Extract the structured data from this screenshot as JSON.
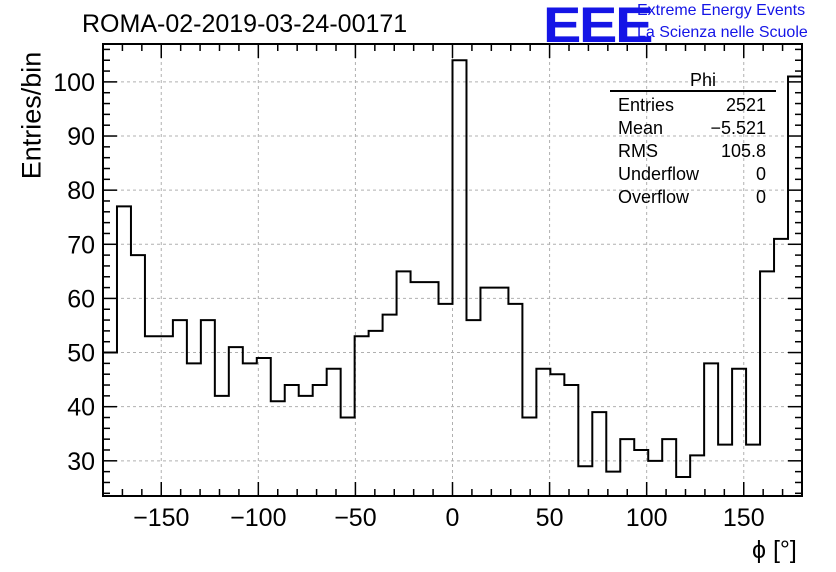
{
  "header": {
    "title": "ROMA-02-2019-03-24-00171",
    "logo_text": "EEE",
    "logo_line1": "Extreme Energy Events",
    "logo_line2": "La Scienza nelle Scuole"
  },
  "stats_box": {
    "name": "Phi",
    "rows": [
      {
        "label": "Entries",
        "value": "2521"
      },
      {
        "label": "Mean",
        "value": "−5.521"
      },
      {
        "label": "RMS",
        "value": "105.8"
      },
      {
        "label": "Underflow",
        "value": "0"
      },
      {
        "label": "Overflow",
        "value": "0"
      }
    ]
  },
  "colors": {
    "logo": "#1515e6",
    "line": "#000000",
    "grid": "#b0b0b0"
  },
  "chart_data": {
    "type": "histogram",
    "title": "ROMA-02-2019-03-24-00171",
    "xlabel": "ϕ [°]",
    "ylabel": "Entries/bin",
    "xlim": [
      -180,
      180
    ],
    "ylim": [
      23.5,
      107
    ],
    "bin_width": 7.2,
    "x_ticks": [
      -150,
      -100,
      -50,
      0,
      50,
      100,
      150
    ],
    "x_tick_labels": [
      "−150",
      "−100",
      "−50",
      "0",
      "50",
      "100",
      "150"
    ],
    "y_ticks": [
      30,
      40,
      50,
      60,
      70,
      80,
      90,
      100
    ],
    "y_tick_labels": [
      "30",
      "40",
      "50",
      "60",
      "70",
      "80",
      "90",
      "100"
    ],
    "grid": true,
    "bin_values": [
      77,
      68,
      53,
      53,
      56,
      48,
      56,
      42,
      51,
      48,
      49,
      41,
      44,
      42,
      44,
      47,
      38,
      53,
      54,
      57,
      65,
      63,
      63,
      59,
      104,
      56,
      62,
      62,
      59,
      38,
      47,
      46,
      44,
      29,
      39,
      28,
      34,
      32,
      30,
      34,
      27,
      31,
      48,
      33,
      47,
      33,
      65,
      71,
      101
    ],
    "first_bin_value": 50
  }
}
